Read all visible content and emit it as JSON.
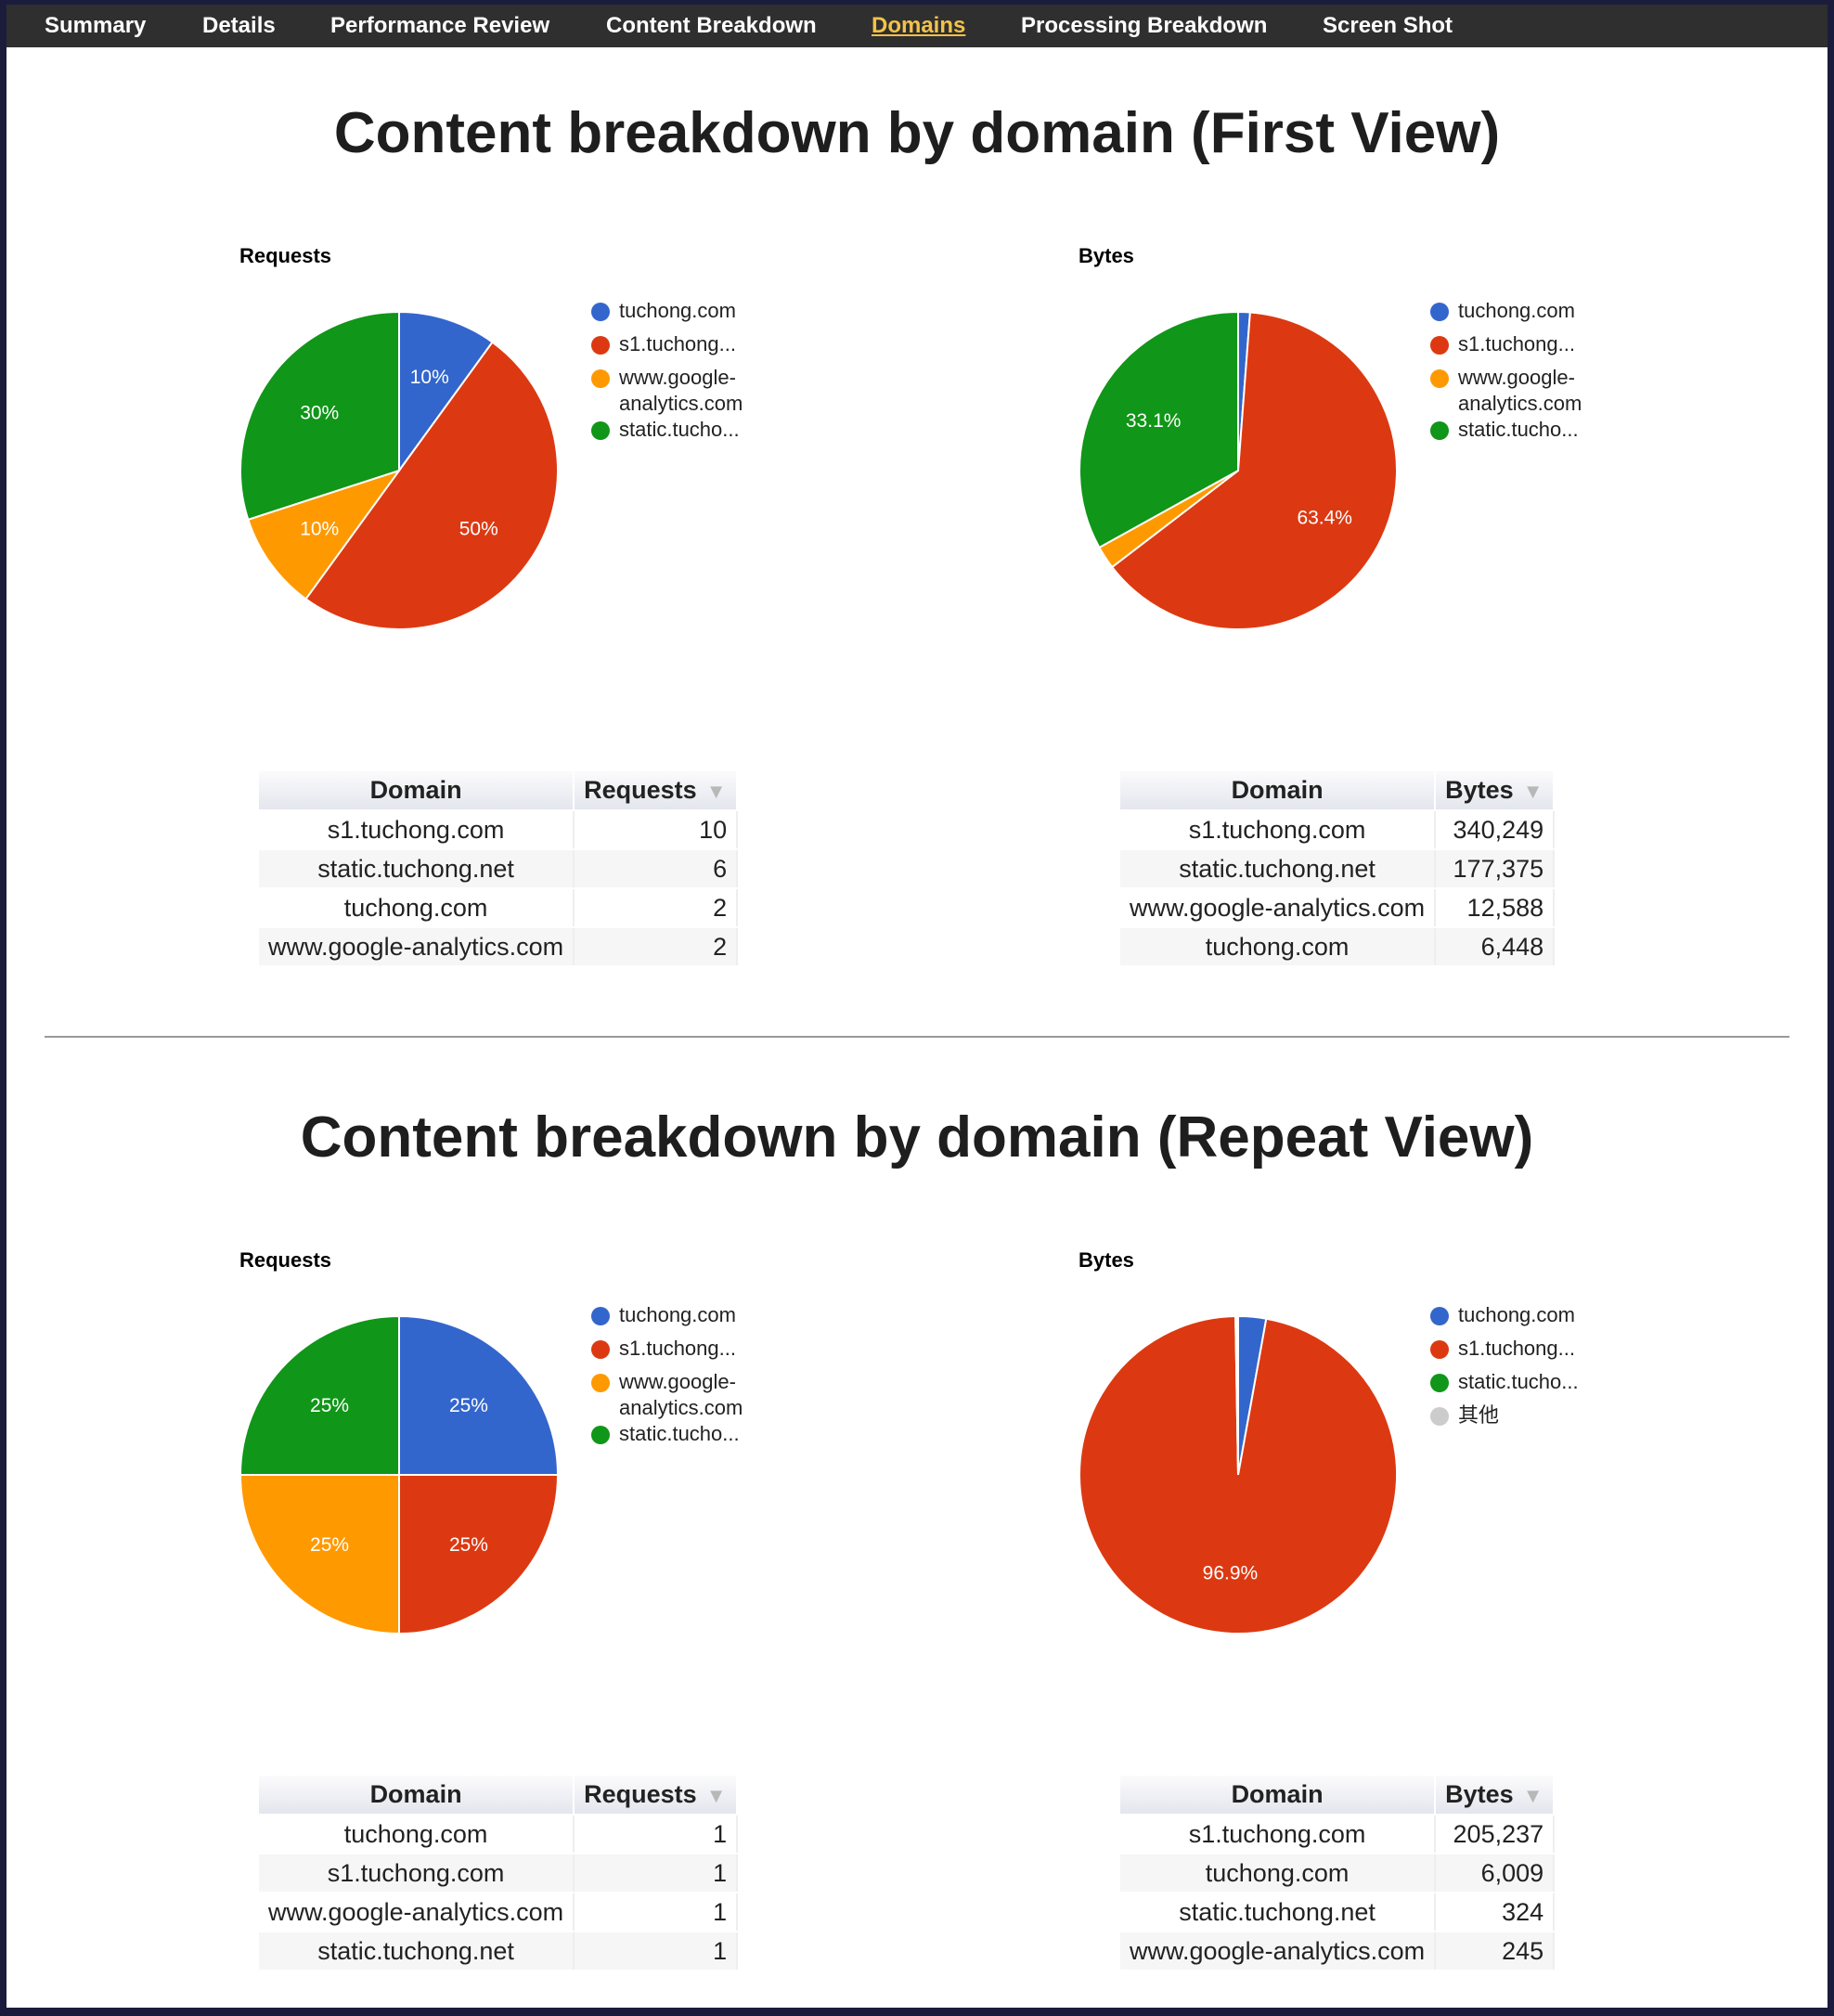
{
  "nav": {
    "items": [
      {
        "label": "Summary",
        "active": false
      },
      {
        "label": "Details",
        "active": false
      },
      {
        "label": "Performance Review",
        "active": false
      },
      {
        "label": "Content Breakdown",
        "active": false
      },
      {
        "label": "Domains",
        "active": true
      },
      {
        "label": "Processing Breakdown",
        "active": false
      },
      {
        "label": "Screen Shot",
        "active": false
      }
    ]
  },
  "colors": {
    "tuchong": "#3366cc",
    "s1": "#dc3912",
    "google": "#ff9900",
    "static": "#109618",
    "other": "#cccccc"
  },
  "sections": [
    {
      "title": "Content breakdown by domain (First View)",
      "requests_table": {
        "headers": [
          "Domain",
          "Requests"
        ],
        "rows": [
          [
            "s1.tuchong.com",
            "10"
          ],
          [
            "static.tuchong.net",
            "6"
          ],
          [
            "tuchong.com",
            "2"
          ],
          [
            "www.google-analytics.com",
            "2"
          ]
        ]
      },
      "bytes_table": {
        "headers": [
          "Domain",
          "Bytes"
        ],
        "rows": [
          [
            "s1.tuchong.com",
            "340,249"
          ],
          [
            "static.tuchong.net",
            "177,375"
          ],
          [
            "www.google-analytics.com",
            "12,588"
          ],
          [
            "tuchong.com",
            "6,448"
          ]
        ]
      }
    },
    {
      "title": "Content breakdown by domain (Repeat View)",
      "requests_table": {
        "headers": [
          "Domain",
          "Requests"
        ],
        "rows": [
          [
            "tuchong.com",
            "1"
          ],
          [
            "s1.tuchong.com",
            "1"
          ],
          [
            "www.google-analytics.com",
            "1"
          ],
          [
            "static.tuchong.net",
            "1"
          ]
        ]
      },
      "bytes_table": {
        "headers": [
          "Domain",
          "Bytes"
        ],
        "rows": [
          [
            "s1.tuchong.com",
            "205,237"
          ],
          [
            "tuchong.com",
            "6,009"
          ],
          [
            "static.tuchong.net",
            "324"
          ],
          [
            "www.google-analytics.com",
            "245"
          ]
        ]
      }
    }
  ],
  "chart_data": [
    {
      "type": "pie",
      "title": "Requests",
      "categories": [
        "tuchong.com",
        "s1.tuchong...",
        "www.google-analytics.com",
        "static.tucho..."
      ],
      "values": [
        2,
        10,
        2,
        6
      ],
      "labels": [
        "10%",
        "50%",
        "10%",
        "30%"
      ],
      "colors": [
        "#3366cc",
        "#dc3912",
        "#ff9900",
        "#109618"
      ],
      "legend": "right"
    },
    {
      "type": "pie",
      "title": "Bytes",
      "categories": [
        "tuchong.com",
        "s1.tuchong...",
        "www.google-analytics.com",
        "static.tucho..."
      ],
      "values": [
        6448,
        340249,
        12588,
        177375
      ],
      "labels": [
        "",
        "63.4%",
        "",
        "33.1%"
      ],
      "colors": [
        "#3366cc",
        "#dc3912",
        "#ff9900",
        "#109618"
      ],
      "legend": "right"
    },
    {
      "type": "pie",
      "title": "Requests",
      "categories": [
        "tuchong.com",
        "s1.tuchong...",
        "www.google-analytics.com",
        "static.tucho..."
      ],
      "values": [
        1,
        1,
        1,
        1
      ],
      "labels": [
        "25%",
        "25%",
        "25%",
        "25%"
      ],
      "colors": [
        "#3366cc",
        "#dc3912",
        "#ff9900",
        "#109618"
      ],
      "legend": "right"
    },
    {
      "type": "pie",
      "title": "Bytes",
      "categories": [
        "tuchong.com",
        "s1.tuchong...",
        "static.tucho...",
        "其他"
      ],
      "values": [
        6009,
        205237,
        324,
        245
      ],
      "labels": [
        "",
        "96.9%",
        "",
        ""
      ],
      "colors": [
        "#3366cc",
        "#dc3912",
        "#109618",
        "#cccccc"
      ],
      "legend": "right"
    }
  ]
}
